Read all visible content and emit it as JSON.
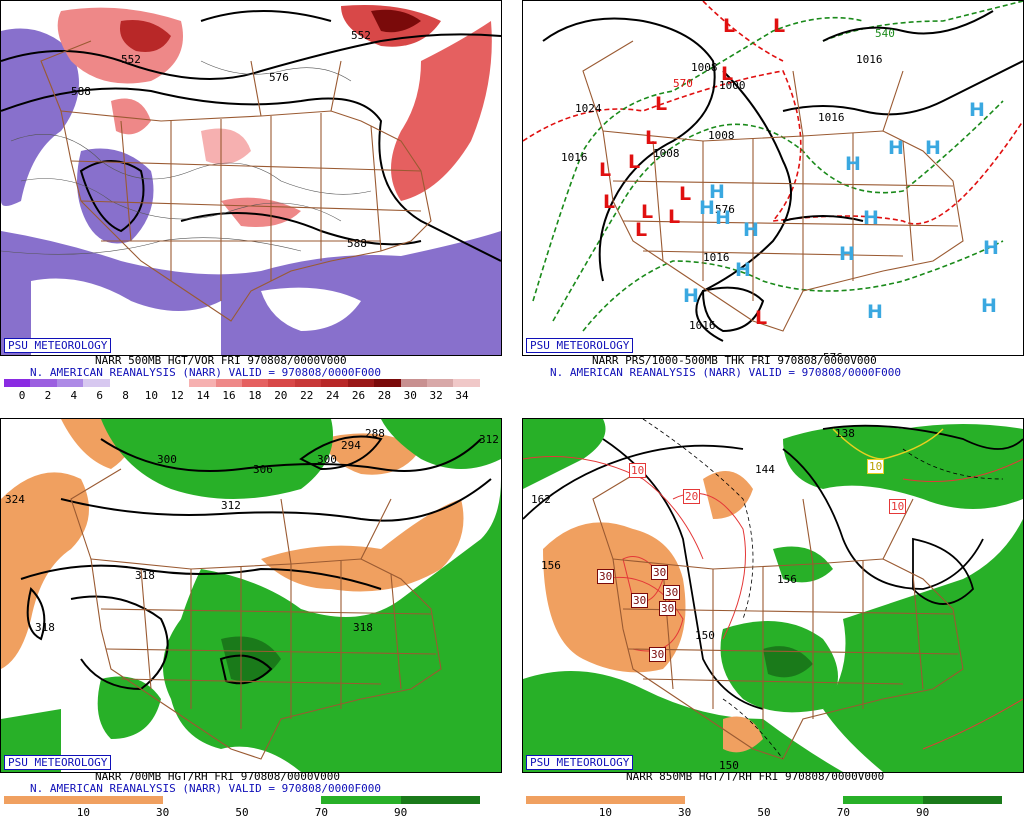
{
  "badge": "PSU METEOROLOGY",
  "panels": {
    "tl": {
      "caption1": "NARR 500MB HGT/VOR FRI 970808/0000V000",
      "caption2": "N. AMERICAN REANALYSIS (NARR) VALID = 970808/0000F000",
      "colorbar_ticks": [
        "0",
        "2",
        "4",
        "6",
        "8",
        "10",
        "12",
        "14",
        "16",
        "18",
        "20",
        "22",
        "24",
        "26",
        "28",
        "30",
        "32",
        "34"
      ],
      "colorbar_colors": [
        "#8a2be2",
        "#9b5fe0",
        "#ad8ae6",
        "#d7c8f0",
        "#ffffff",
        "#ffffff",
        "#ffffff",
        "#f6b0b0",
        "#ee8888",
        "#e56060",
        "#d84848",
        "#c83838",
        "#b82828",
        "#9a1818",
        "#7a0a0a",
        "#c89090",
        "#d8a8a8",
        "#f0c8c8"
      ],
      "labels": [
        "588",
        "576",
        "552",
        "552",
        "588"
      ]
    },
    "tr": {
      "caption1": "NARR PRS/1000-500MB THK FRI 970808/0000V000",
      "caption2": "N. AMERICAN REANALYSIS (NARR) VALID = 970808/0000F000",
      "labels": [
        "1024",
        "1016",
        "1008",
        "1008",
        "1000",
        "1016",
        "1016",
        "1016",
        "1016",
        "1008",
        "570",
        "540",
        "576",
        "576"
      ],
      "highs": "H",
      "lows": "L"
    },
    "bl": {
      "caption1": "NARR 700MB HGT/RH FRI 970808/0000V000",
      "caption2": "N. AMERICAN REANALYSIS (NARR) VALID = 970808/0000F000",
      "colorbar_ticks": [
        "10",
        "30",
        "50",
        "70",
        "90"
      ],
      "labels": [
        "300",
        "306",
        "300",
        "294",
        "288",
        "312",
        "318",
        "318",
        "318",
        "312",
        "324"
      ]
    },
    "br": {
      "caption1": "NARR 850MB HGT/T/RH FRI 970808/0000V000",
      "colorbar_ticks": [
        "10",
        "30",
        "50",
        "70",
        "90"
      ],
      "labels": [
        "162",
        "156",
        "150",
        "156",
        "144",
        "138",
        "150",
        "10",
        "20",
        "10",
        "30",
        "30",
        "30",
        "30",
        "30",
        "30",
        "10"
      ]
    }
  },
  "colors": {
    "orange": "#f0a060",
    "green": "#28b028",
    "darkgreen": "#1a7a1a",
    "purple": "#8870cc",
    "red": "#e43838",
    "brown": "#9a5a32",
    "blue": "#1010b8",
    "cyan": "#3aa8e0",
    "lowred": "#e01010"
  }
}
